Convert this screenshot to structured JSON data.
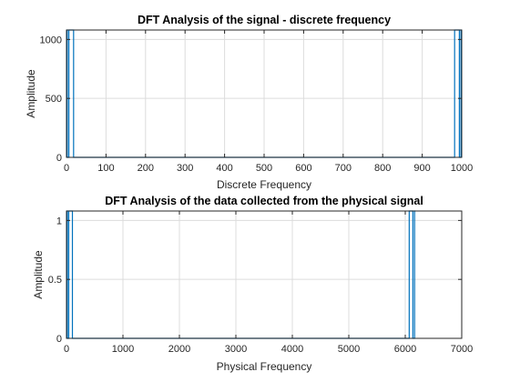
{
  "chart_data": [
    {
      "type": "line",
      "title": "DFT Analysis of the signal - discrete frequency",
      "xlabel": "Discrete Frequency",
      "ylabel": "Amplitude",
      "xlim": [
        0,
        1000
      ],
      "ylim": [
        0,
        1080
      ],
      "xticks": [
        0,
        100,
        200,
        300,
        400,
        500,
        600,
        700,
        800,
        900,
        1000
      ],
      "yticks": [
        0,
        500,
        1000
      ],
      "grid": true,
      "series": [
        {
          "color": "#0072bd",
          "points": [
            [
              0,
              1080
            ],
            [
              2,
              1080
            ],
            [
              2,
              0
            ],
            [
              6,
              0
            ],
            [
              6,
              1080
            ],
            [
              18,
              1080
            ],
            [
              18,
              0
            ],
            [
              982,
              0
            ],
            [
              982,
              1080
            ],
            [
              994,
              1080
            ],
            [
              994,
              0
            ],
            [
              998,
              0
            ],
            [
              998,
              1080
            ],
            [
              1000,
              1080
            ]
          ]
        }
      ]
    },
    {
      "type": "line",
      "title": "DFT Analysis of the data collected from the physical signal",
      "xlabel": "Physical Frequency",
      "ylabel": "Amplitude",
      "xlim": [
        0,
        7000
      ],
      "ylim": [
        0,
        1.08
      ],
      "xticks": [
        0,
        1000,
        2000,
        3000,
        4000,
        5000,
        6000,
        7000
      ],
      "yticks": [
        0,
        0.5,
        1
      ],
      "grid": true,
      "series": [
        {
          "color": "#0072bd",
          "points": [
            [
              0,
              1.08
            ],
            [
              15,
              1.08
            ],
            [
              15,
              0
            ],
            [
              40,
              0
            ],
            [
              40,
              1.08
            ],
            [
              105,
              1.08
            ],
            [
              105,
              0
            ],
            [
              6070,
              0
            ],
            [
              6070,
              1.08
            ],
            [
              6135,
              1.08
            ],
            [
              6135,
              0
            ],
            [
              6165,
              0
            ],
            [
              6165,
              1.08
            ],
            [
              6180,
              1.08
            ]
          ]
        }
      ]
    }
  ]
}
